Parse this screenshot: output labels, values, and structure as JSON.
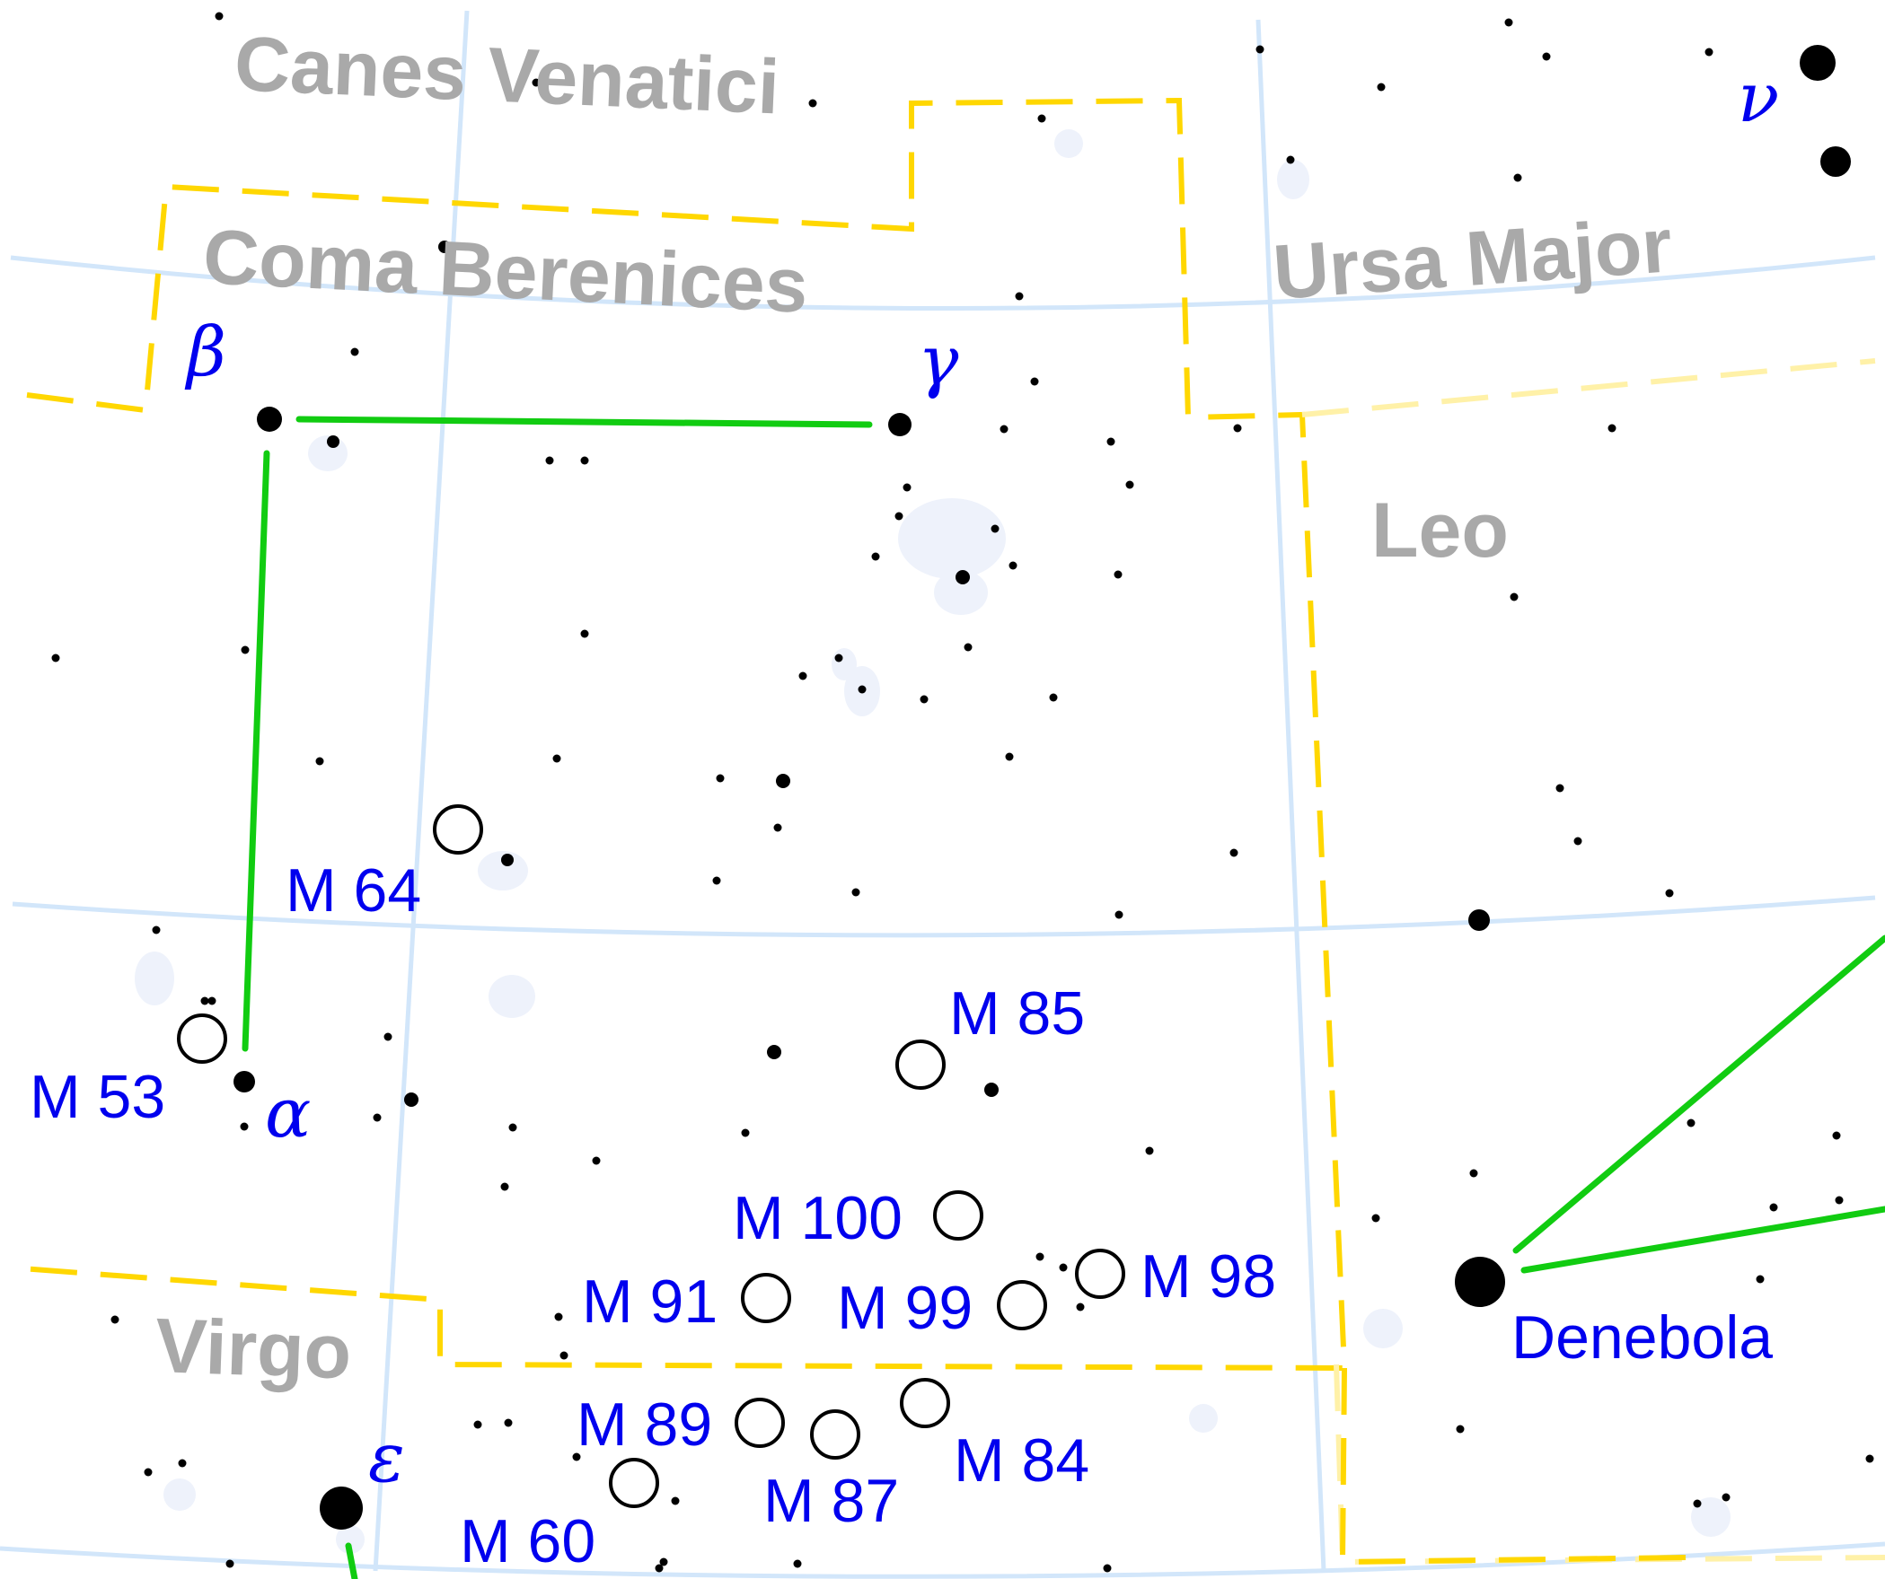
{
  "map": {
    "constellations": [
      {
        "id": "canes-venatici",
        "label": "Canes Venatici"
      },
      {
        "id": "coma-berenices",
        "label": "Coma Berenices"
      },
      {
        "id": "ursa-major",
        "label": "Ursa Major"
      },
      {
        "id": "leo",
        "label": "Leo"
      },
      {
        "id": "virgo",
        "label": "Virgo"
      }
    ],
    "stars_named": [
      {
        "id": "beta",
        "label": "β"
      },
      {
        "id": "gamma",
        "label": "γ"
      },
      {
        "id": "alpha",
        "label": "α"
      },
      {
        "id": "epsilon",
        "label": "ε"
      },
      {
        "id": "nu",
        "label": "ν"
      },
      {
        "id": "denebola",
        "label": "Denebola"
      }
    ],
    "deep_sky_objects": [
      {
        "id": "m64",
        "label": "M 64"
      },
      {
        "id": "m53",
        "label": "M 53"
      },
      {
        "id": "m85",
        "label": "M 85"
      },
      {
        "id": "m100",
        "label": "M 100"
      },
      {
        "id": "m91",
        "label": "M 91"
      },
      {
        "id": "m99",
        "label": "M 99"
      },
      {
        "id": "m98",
        "label": "M 98"
      },
      {
        "id": "m89",
        "label": "M 89"
      },
      {
        "id": "m87",
        "label": "M 87"
      },
      {
        "id": "m84",
        "label": "M 84"
      },
      {
        "id": "m60",
        "label": "M 60"
      }
    ],
    "colors": {
      "constellation_name": "#a9a9a9",
      "object_label": "#0000ee",
      "boundary": "#ffd700",
      "stick_figure": "#11cc11",
      "grid": "#d2e6fa",
      "star": "#000000"
    }
  }
}
